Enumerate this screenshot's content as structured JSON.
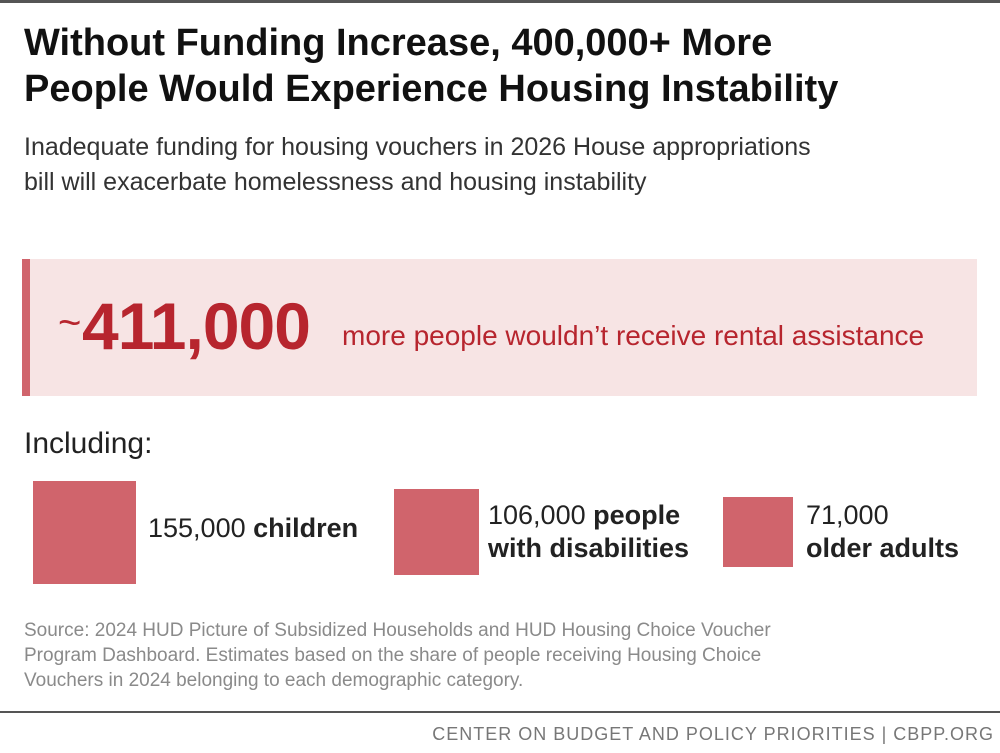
{
  "title_line1": "Without Funding Increase, 400,000+ More",
  "title_line2": "People Would Experience Housing Instability",
  "subtitle_line1": "Inadequate funding for housing vouchers in 2026 House appropriations",
  "subtitle_line2": "bill will exacerbate homelessness and housing instability",
  "callout": {
    "tilde": "~",
    "number": "411,000",
    "text": "more people wouldn’t receive rental assistance"
  },
  "including_label": "Including:",
  "items": [
    {
      "number": "155,000",
      "desc_line1": "children",
      "desc_line2": ""
    },
    {
      "number": "106,000",
      "desc_line1": "people",
      "desc_line2": "with disabilities"
    },
    {
      "number": "71,000",
      "desc_line1": "",
      "desc_line2": "older adults"
    }
  ],
  "source_line1": "Source: 2024 HUD Picture of Subsidized Households and HUD Housing Choice Voucher",
  "source_line2": "Program Dashboard. Estimates based on the share of people receiving Housing Choice",
  "source_line3": "Vouchers in 2024 belonging to each demographic category.",
  "footer": "CENTER ON BUDGET AND POLICY PRIORITIES | CBPP.ORG",
  "colors": {
    "accent": "#d0646c",
    "callout_text": "#b7252e",
    "callout_bg": "#f7e4e4"
  },
  "chart_data": {
    "type": "bar",
    "total": 411000,
    "categories": [
      "children",
      "people with disabilities",
      "older adults"
    ],
    "values": [
      155000,
      106000,
      71000
    ]
  }
}
